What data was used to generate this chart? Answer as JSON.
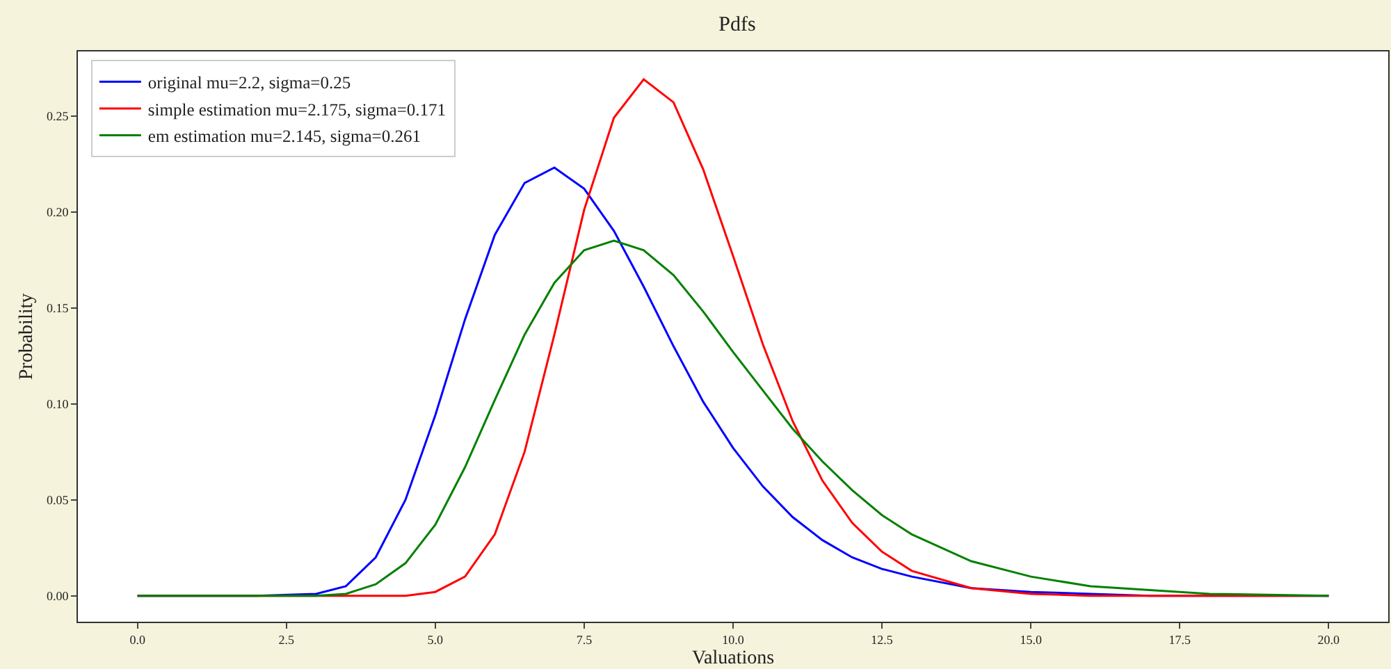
{
  "chart_data": {
    "type": "line",
    "title": "Pdfs",
    "xlabel": "Valuations",
    "ylabel": "Probability",
    "x": [
      0,
      2,
      3,
      3.5,
      4,
      4.5,
      5,
      5.5,
      6,
      6.5,
      7,
      7.5,
      8,
      8.5,
      9,
      9.5,
      10,
      10.5,
      11,
      11.5,
      12,
      12.5,
      13,
      14,
      15,
      16,
      17,
      18,
      20
    ],
    "series": [
      {
        "name": "original mu=2.2, sigma=0.25",
        "color": "#0000ff",
        "values": [
          0,
          0,
          0.001,
          0.005,
          0.02,
          0.05,
          0.094,
          0.144,
          0.188,
          0.215,
          0.223,
          0.212,
          0.19,
          0.161,
          0.13,
          0.101,
          0.077,
          0.057,
          0.041,
          0.029,
          0.02,
          0.014,
          0.01,
          0.004,
          0.002,
          0.001,
          0.0,
          0.0,
          0.0
        ]
      },
      {
        "name": "simple estimation mu=2.175, sigma=0.171",
        "color": "#ff0000",
        "values": [
          0,
          0,
          0,
          0,
          0,
          0,
          0.002,
          0.01,
          0.032,
          0.075,
          0.136,
          0.201,
          0.249,
          0.269,
          0.257,
          0.222,
          0.177,
          0.131,
          0.091,
          0.06,
          0.038,
          0.023,
          0.013,
          0.004,
          0.001,
          0.0,
          0.0,
          0.0,
          0.0
        ]
      },
      {
        "name": "em estimation mu=2.145, sigma=0.261",
        "color": "#008000",
        "values": [
          0,
          0,
          0,
          0.001,
          0.006,
          0.017,
          0.037,
          0.067,
          0.102,
          0.136,
          0.163,
          0.18,
          0.185,
          0.18,
          0.167,
          0.148,
          0.127,
          0.107,
          0.087,
          0.07,
          0.055,
          0.042,
          0.032,
          0.018,
          0.01,
          0.005,
          0.003,
          0.001,
          0.0
        ]
      }
    ],
    "xlim": [
      -1,
      21
    ],
    "xticks": [
      {
        "value": 0,
        "label": "0.0"
      },
      {
        "value": 2.5,
        "label": "2.5"
      },
      {
        "value": 5,
        "label": "5.0"
      },
      {
        "value": 7.5,
        "label": "7.5"
      },
      {
        "value": 10,
        "label": "10.0"
      },
      {
        "value": 12.5,
        "label": "12.5"
      },
      {
        "value": 15,
        "label": "15.0"
      },
      {
        "value": 17.5,
        "label": "17.5"
      },
      {
        "value": 20,
        "label": "20.0"
      }
    ],
    "ylim": [
      -0.0135,
      0.2835
    ],
    "yticks": [
      {
        "value": 0,
        "label": "0.00"
      },
      0.05,
      {
        "value": 0.1,
        "label": "0.10"
      },
      0.15,
      {
        "value": 0.2,
        "label": "0.20"
      },
      0.25
    ],
    "grid": false,
    "legend": "top left",
    "marker": "none",
    "line_style": "solid"
  }
}
